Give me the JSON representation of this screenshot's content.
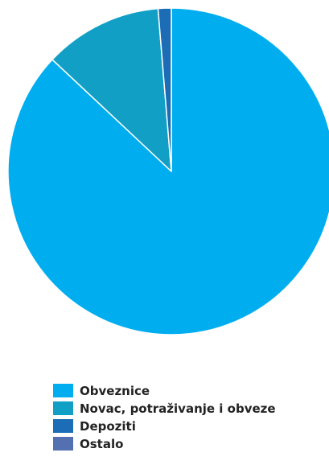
{
  "chart_data": {
    "type": "pie",
    "title": "",
    "legend_position": "bottom-left",
    "series": [
      {
        "values": [
          87.0,
          11.7,
          1.3,
          0.0
        ]
      }
    ],
    "slices": [
      {
        "label": "Obveznice",
        "value": 87.0,
        "color": "#00AEEF"
      },
      {
        "label": "Novac, potraživanje i obveze",
        "value": 11.7,
        "color": "#129FC6"
      },
      {
        "label": "Depoziti",
        "value": 1.3,
        "color": "#1C6DB5"
      },
      {
        "label": "Ostalo",
        "value": 0.0,
        "color": "#5570B0"
      }
    ]
  }
}
